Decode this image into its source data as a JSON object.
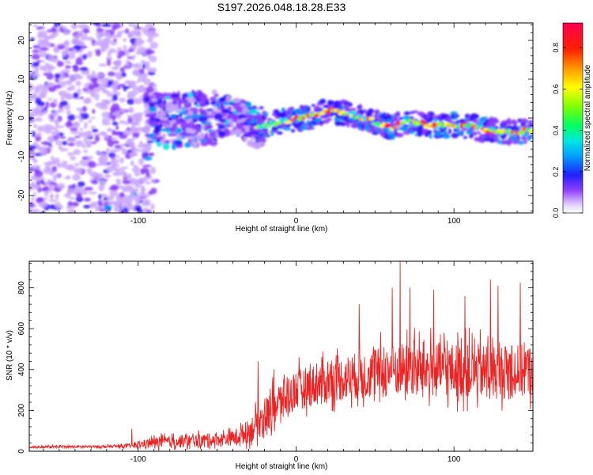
{
  "title": "S197.2026.048.18.28.E33",
  "chart_data": [
    {
      "type": "heatmap",
      "title": "S197.2026.048.18.28.E33",
      "xlabel": "Height of straight line (km)",
      "ylabel": "Frequency (Hz)",
      "xlim": [
        -169,
        150
      ],
      "ylim": [
        -24.5,
        24.5
      ],
      "xticks": [
        {
          "v": -100,
          "label": "-100"
        },
        {
          "v": 0,
          "label": "0"
        },
        {
          "v": 100,
          "label": "100"
        }
      ],
      "yticks": [
        {
          "v": -20,
          "label": "-20"
        },
        {
          "v": -10,
          "label": "-10"
        },
        {
          "v": 0,
          "label": "0"
        },
        {
          "v": 10,
          "label": "10"
        },
        {
          "v": 20,
          "label": "20"
        }
      ],
      "colorbar": {
        "label": "Normalized spectral amplitude",
        "range": [
          0,
          0.92
        ],
        "ticks": [
          {
            "v": 0.0,
            "label": "0.0"
          },
          {
            "v": 0.2,
            "label": "0.2"
          },
          {
            "v": 0.4,
            "label": "0.4"
          },
          {
            "v": 0.6,
            "label": "0.6"
          },
          {
            "v": 0.8,
            "label": "0.8"
          }
        ]
      },
      "ridge": {
        "description": "frequency centre of the signal track",
        "x": [
          -169,
          -120,
          -100,
          -80,
          -60,
          -40,
          -25,
          -10,
          0,
          10,
          20,
          30,
          40,
          50,
          60,
          70,
          80,
          90,
          100,
          110,
          120,
          130,
          140,
          150
        ],
        "y": [
          -2,
          -3,
          0,
          -0.5,
          0,
          0.5,
          -2.5,
          -1,
          -0.2,
          0.3,
          2,
          1.3,
          0.3,
          -1,
          -2.5,
          -1,
          -1.5,
          -2,
          -1.8,
          -2.2,
          -3,
          -3.5,
          -3.5,
          -3
        ]
      }
    },
    {
      "type": "line",
      "xlabel": "Height of straight line (km)",
      "ylabel": "SNR (10 * v/v)",
      "xlim": [
        -169,
        150
      ],
      "ylim": [
        0,
        930
      ],
      "xticks": [
        {
          "v": -100,
          "label": "-100"
        },
        {
          "v": 0,
          "label": "0"
        },
        {
          "v": 100,
          "label": "100"
        }
      ],
      "yticks": [
        {
          "v": 0,
          "label": "0"
        },
        {
          "v": 200,
          "label": "200"
        },
        {
          "v": 400,
          "label": "400"
        },
        {
          "v": 600,
          "label": "600"
        },
        {
          "v": 800,
          "label": "800"
        }
      ],
      "color": "#ee2222",
      "envelope": {
        "x": [
          -169,
          -120,
          -105,
          -90,
          -70,
          -50,
          -40,
          -30,
          -20,
          -10,
          0,
          20,
          40,
          60,
          80,
          100,
          120,
          150
        ],
        "baseline": [
          20,
          22,
          25,
          40,
          45,
          55,
          60,
          90,
          160,
          230,
          290,
          330,
          360,
          380,
          390,
          380,
          375,
          380
        ],
        "amplitude": [
          12,
          14,
          20,
          60,
          70,
          70,
          80,
          130,
          200,
          230,
          220,
          230,
          260,
          290,
          300,
          300,
          300,
          290
        ]
      },
      "peaks": [
        {
          "x": -104,
          "y": 110
        },
        {
          "x": -24,
          "y": 440
        },
        {
          "x": -14,
          "y": 400
        },
        {
          "x": 40,
          "y": 720
        },
        {
          "x": 61,
          "y": 800
        },
        {
          "x": 66,
          "y": 930
        },
        {
          "x": 72,
          "y": 800
        },
        {
          "x": 87,
          "y": 790
        },
        {
          "x": 107,
          "y": 760
        },
        {
          "x": 123,
          "y": 840
        },
        {
          "x": 128,
          "y": 810
        },
        {
          "x": 142,
          "y": 825
        }
      ]
    }
  ]
}
